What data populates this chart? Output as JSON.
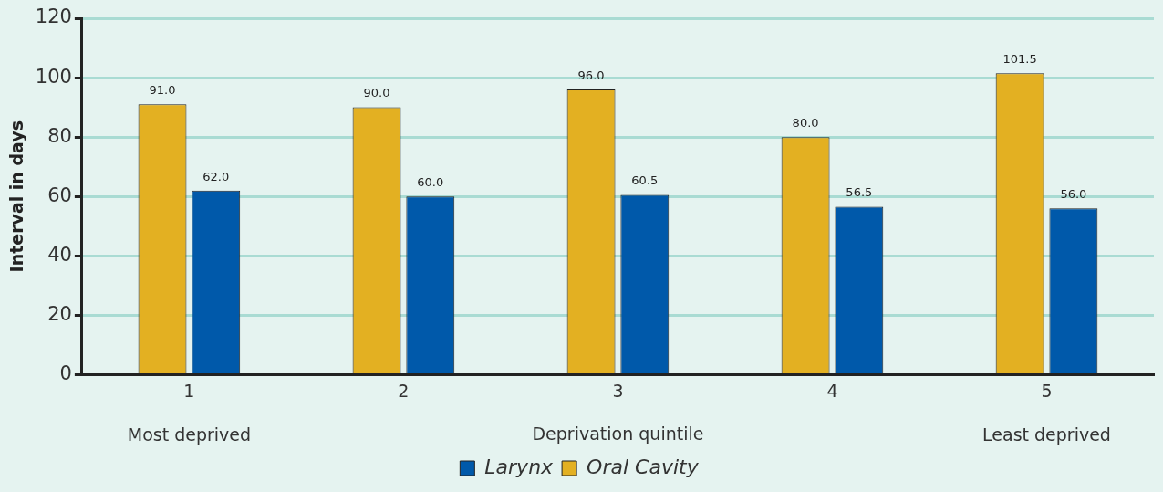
{
  "chart_data": {
    "type": "bar",
    "xlabel": "Deprivation quintile",
    "ylabel": "Interval in days",
    "categories": [
      "1",
      "2",
      "3",
      "4",
      "5"
    ],
    "series": [
      {
        "name": "Oral Cavity",
        "color": "#e3b022",
        "values": [
          91.0,
          90.0,
          96.0,
          80.0,
          101.5
        ],
        "value_labels": [
          "91.0",
          "90.0",
          "96.0",
          "80.0",
          "101.5"
        ]
      },
      {
        "name": "Larynx",
        "color": "#0059aa",
        "values": [
          62.0,
          60.0,
          60.5,
          56.5,
          56.0
        ],
        "value_labels": [
          "62.0",
          "60.0",
          "60.5",
          "56.5",
          "56.0"
        ]
      }
    ],
    "ylim": [
      0,
      120
    ],
    "yticks": [
      0,
      20,
      40,
      60,
      80,
      100,
      120
    ],
    "grid": "y",
    "legend": "bottom",
    "annotations": [
      "Most deprived",
      "Least deprived"
    ]
  }
}
